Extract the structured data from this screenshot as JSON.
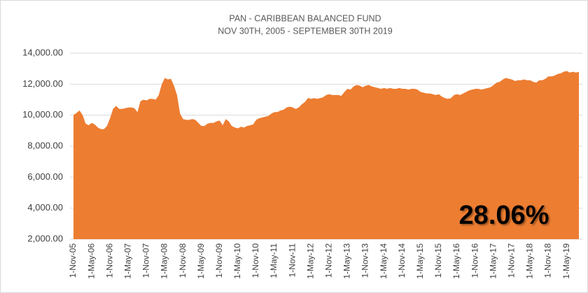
{
  "chart_data": {
    "type": "area",
    "title": "PAN - CARIBBEAN BALANCED FUND",
    "subtitle": "NOV 30TH, 2005 - SEPTEMBER 30TH 2019",
    "annotation": "28.06%",
    "color": "#ed7d31",
    "grid": true,
    "ylim": [
      2000,
      14000
    ],
    "yticks": [
      {
        "value": 2000,
        "label": "2,000.00"
      },
      {
        "value": 4000,
        "label": "4,000.00"
      },
      {
        "value": 6000,
        "label": "6,000.00"
      },
      {
        "value": 8000,
        "label": "8,000.00"
      },
      {
        "value": 10000,
        "label": "10,000.00"
      },
      {
        "value": 12000,
        "label": "12,000.00"
      },
      {
        "value": 14000,
        "label": "14,000.00"
      }
    ],
    "categories": [
      "1-Nov-05",
      null,
      null,
      null,
      null,
      null,
      "1-May-06",
      null,
      null,
      null,
      null,
      null,
      "1-Nov-06",
      null,
      null,
      null,
      null,
      null,
      "1-May-07",
      null,
      null,
      null,
      null,
      null,
      "1-Nov-07",
      null,
      null,
      null,
      null,
      null,
      "1-May-08",
      null,
      null,
      null,
      null,
      null,
      "1-Nov-08",
      null,
      null,
      null,
      null,
      null,
      "1-May-09",
      null,
      null,
      null,
      null,
      null,
      "1-Nov-09",
      null,
      null,
      null,
      null,
      null,
      "1-May-10",
      null,
      null,
      null,
      null,
      null,
      "1-Nov-10",
      null,
      null,
      null,
      null,
      null,
      "1-May-11",
      null,
      null,
      null,
      null,
      null,
      "1-Nov-11",
      null,
      null,
      null,
      null,
      null,
      "1-May-12",
      null,
      null,
      null,
      null,
      null,
      "1-Nov-12",
      null,
      null,
      null,
      null,
      null,
      "1-May-13",
      null,
      null,
      null,
      null,
      null,
      "1-Nov-13",
      null,
      null,
      null,
      null,
      null,
      "1-May-14",
      null,
      null,
      null,
      null,
      null,
      "1-Nov-14",
      null,
      null,
      null,
      null,
      null,
      "1-May-15",
      null,
      null,
      null,
      null,
      null,
      "1-Nov-15",
      null,
      null,
      null,
      null,
      null,
      "1-May-16",
      null,
      null,
      null,
      null,
      null,
      "1-Nov-16",
      null,
      null,
      null,
      null,
      null,
      "1-May-17",
      null,
      null,
      null,
      null,
      null,
      "1-Nov-17",
      null,
      null,
      null,
      null,
      null,
      "1-May-18",
      null,
      null,
      null,
      null,
      null,
      "1-Nov-18",
      null,
      null,
      null,
      null,
      null,
      "1-May-19",
      null,
      null,
      null,
      null
    ],
    "values": [
      10000,
      10150,
      10300,
      10000,
      9450,
      9350,
      9500,
      9400,
      9200,
      9100,
      9100,
      9300,
      9800,
      10400,
      10600,
      10400,
      10400,
      10450,
      10500,
      10500,
      10450,
      10200,
      10900,
      11000,
      10950,
      11050,
      11050,
      11000,
      11300,
      12000,
      12400,
      12300,
      12350,
      11900,
      11300,
      10100,
      9750,
      9700,
      9700,
      9750,
      9700,
      9500,
      9300,
      9300,
      9450,
      9500,
      9500,
      9600,
      9650,
      9350,
      9750,
      9600,
      9300,
      9200,
      9150,
      9250,
      9200,
      9300,
      9350,
      9400,
      9700,
      9800,
      9850,
      9900,
      9950,
      10100,
      10200,
      10200,
      10300,
      10350,
      10500,
      10550,
      10500,
      10400,
      10500,
      10700,
      10850,
      11100,
      11050,
      11100,
      11050,
      11100,
      11150,
      11300,
      11350,
      11300,
      11300,
      11300,
      11250,
      11500,
      11700,
      11650,
      11850,
      11950,
      11900,
      11800,
      11900,
      11950,
      11850,
      11800,
      11750,
      11700,
      11750,
      11700,
      11750,
      11700,
      11700,
      11750,
      11700,
      11700,
      11650,
      11700,
      11700,
      11650,
      11500,
      11450,
      11400,
      11400,
      11350,
      11300,
      11350,
      11200,
      11100,
      11050,
      11100,
      11300,
      11350,
      11300,
      11400,
      11500,
      11600,
      11650,
      11700,
      11700,
      11650,
      11700,
      11750,
      11800,
      11950,
      12100,
      12150,
      12300,
      12400,
      12350,
      12300,
      12200,
      12250,
      12250,
      12300,
      12250,
      12250,
      12150,
      12100,
      12250,
      12250,
      12350,
      12500,
      12500,
      12550,
      12650,
      12700,
      12800,
      12850,
      12750,
      12800,
      12750,
      12800
    ]
  }
}
